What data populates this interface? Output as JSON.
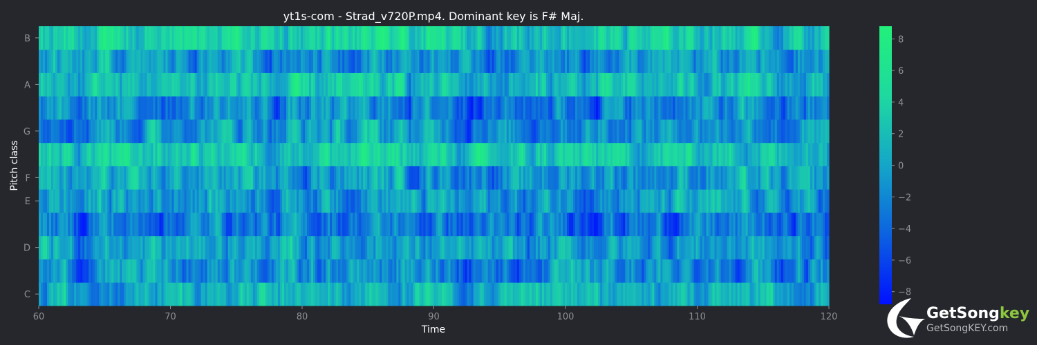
{
  "chart_data": {
    "type": "heatmap",
    "title": "yt1s-com - Strad_v720P.mp4. Dominant key is F# Maj.",
    "xlabel": "Time",
    "ylabel": "Pitch class",
    "xlim": [
      60,
      120
    ],
    "x_ticks": [
      "60",
      "70",
      "80",
      "90",
      "100",
      "110",
      "120"
    ],
    "y_categories": [
      "C",
      "C#",
      "D",
      "D#",
      "E",
      "F",
      "F#",
      "G",
      "G#",
      "A",
      "A#",
      "B"
    ],
    "y_tick_labels": [
      "C",
      "D",
      "E",
      "F",
      "G",
      "A",
      "B"
    ],
    "colorbar": {
      "range": [
        -8.8,
        8.8
      ],
      "ticks": [
        "8",
        "6",
        "4",
        "2",
        "0",
        "−2",
        "−4",
        "−6",
        "−8"
      ],
      "colors": [
        "#0011ff",
        "#0c62e0",
        "#14a6c8",
        "#1ed9a0",
        "#22f07a"
      ]
    },
    "row_mean_levels": {
      "C": 0.5,
      "C#": -1.5,
      "D": -0.5,
      "D#": -3.0,
      "E": -0.5,
      "F": -0.5,
      "F#": 3.0,
      "G": -0.5,
      "G#": -2.0,
      "A": 1.5,
      "A#": -1.0,
      "B": 3.5
    }
  },
  "watermark": {
    "brand_main": "GetSong",
    "brand_accent": "key",
    "site": "GetSongKEY.com",
    "accent_color": "#8dc63f"
  }
}
